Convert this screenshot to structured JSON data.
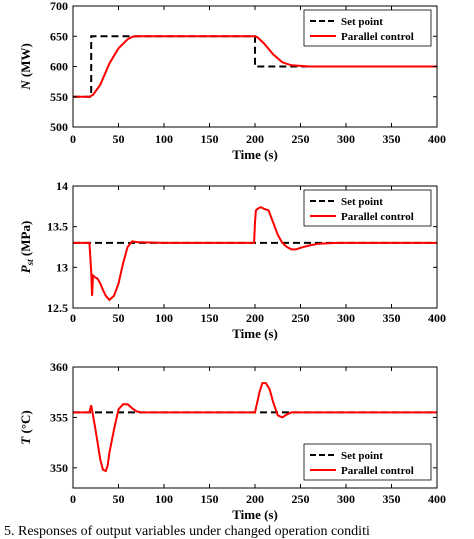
{
  "caption": "5. Responses of output variables under changed operation conditi",
  "chart_data": [
    {
      "type": "line",
      "xlabel": "Time (s)",
      "ylabel": "N (MW)",
      "xlim": [
        0,
        400
      ],
      "ylim": [
        500,
        700
      ],
      "xticks": [
        0,
        50,
        100,
        150,
        200,
        250,
        300,
        350,
        400
      ],
      "yticks": [
        500,
        550,
        600,
        650,
        700
      ],
      "legend_position": "top-right",
      "series": [
        {
          "name": "Set point",
          "style": "dashed",
          "color": "#000000",
          "x": [
            0,
            20,
            20,
            200,
            200,
            400
          ],
          "y": [
            550,
            550,
            650,
            650,
            600,
            600
          ]
        },
        {
          "name": "Parallel control",
          "style": "solid",
          "color": "#ff0000",
          "x": [
            0,
            18,
            22,
            30,
            40,
            50,
            60,
            65,
            70,
            100,
            150,
            200,
            203,
            210,
            220,
            230,
            240,
            260,
            300,
            400
          ],
          "y": [
            550,
            550,
            553,
            570,
            605,
            630,
            645,
            649,
            650,
            650,
            650,
            650,
            648,
            638,
            620,
            607,
            602,
            600,
            600,
            600
          ]
        }
      ]
    },
    {
      "type": "line",
      "xlabel": "Time (s)",
      "ylabel": "P_st (MPa)",
      "xlim": [
        0,
        400
      ],
      "ylim": [
        12.5,
        14
      ],
      "xticks": [
        0,
        50,
        100,
        150,
        200,
        250,
        300,
        350,
        400
      ],
      "yticks": [
        12.5,
        13,
        13.5,
        14
      ],
      "legend_position": "top-right",
      "series": [
        {
          "name": "Set point",
          "style": "dashed",
          "color": "#000000",
          "x": [
            0,
            400
          ],
          "y": [
            13.3,
            13.3
          ]
        },
        {
          "name": "Parallel control",
          "style": "solid",
          "color": "#ff0000",
          "x": [
            0,
            18,
            20,
            21,
            22,
            24,
            27,
            30,
            33,
            36,
            40,
            45,
            50,
            55,
            60,
            65,
            70,
            100,
            150,
            199,
            200,
            201,
            203,
            206,
            210,
            215,
            220,
            225,
            230,
            235,
            240,
            245,
            250,
            260,
            270,
            290,
            400
          ],
          "y": [
            13.3,
            13.3,
            12.95,
            12.65,
            12.9,
            12.88,
            12.86,
            12.8,
            12.72,
            12.65,
            12.6,
            12.65,
            12.8,
            13.05,
            13.25,
            13.32,
            13.31,
            13.3,
            13.3,
            13.3,
            13.55,
            13.7,
            13.72,
            13.74,
            13.72,
            13.7,
            13.55,
            13.4,
            13.3,
            13.25,
            13.22,
            13.22,
            13.24,
            13.27,
            13.29,
            13.3,
            13.3
          ]
        }
      ]
    },
    {
      "type": "line",
      "xlabel": "Time (s)",
      "ylabel": "T (°C)",
      "xlim": [
        0,
        400
      ],
      "ylim": [
        348,
        360
      ],
      "xticks": [
        0,
        50,
        100,
        150,
        200,
        250,
        300,
        350,
        400
      ],
      "yticks": [
        350,
        355,
        360
      ],
      "legend_position": "bottom-right",
      "series": [
        {
          "name": "Set point",
          "style": "dashed",
          "color": "#000000",
          "x": [
            0,
            400
          ],
          "y": [
            355.5,
            355.5
          ]
        },
        {
          "name": "Parallel control",
          "style": "solid",
          "color": "#ff0000",
          "x": [
            0,
            18,
            20,
            22,
            24,
            27,
            30,
            33,
            36,
            38,
            40,
            45,
            50,
            55,
            60,
            65,
            70,
            75,
            100,
            150,
            200,
            202,
            205,
            208,
            212,
            216,
            220,
            225,
            230,
            235,
            240,
            250,
            400
          ],
          "y": [
            355.5,
            355.5,
            356.2,
            355.2,
            354.2,
            352.5,
            350.8,
            349.8,
            349.7,
            350.2,
            351.5,
            353.8,
            355.8,
            356.3,
            356.3,
            355.9,
            355.6,
            355.5,
            355.5,
            355.5,
            355.5,
            356.3,
            357.5,
            358.4,
            358.4,
            357.8,
            356.5,
            355.2,
            355.0,
            355.3,
            355.5,
            355.5,
            355.5
          ]
        }
      ]
    }
  ]
}
